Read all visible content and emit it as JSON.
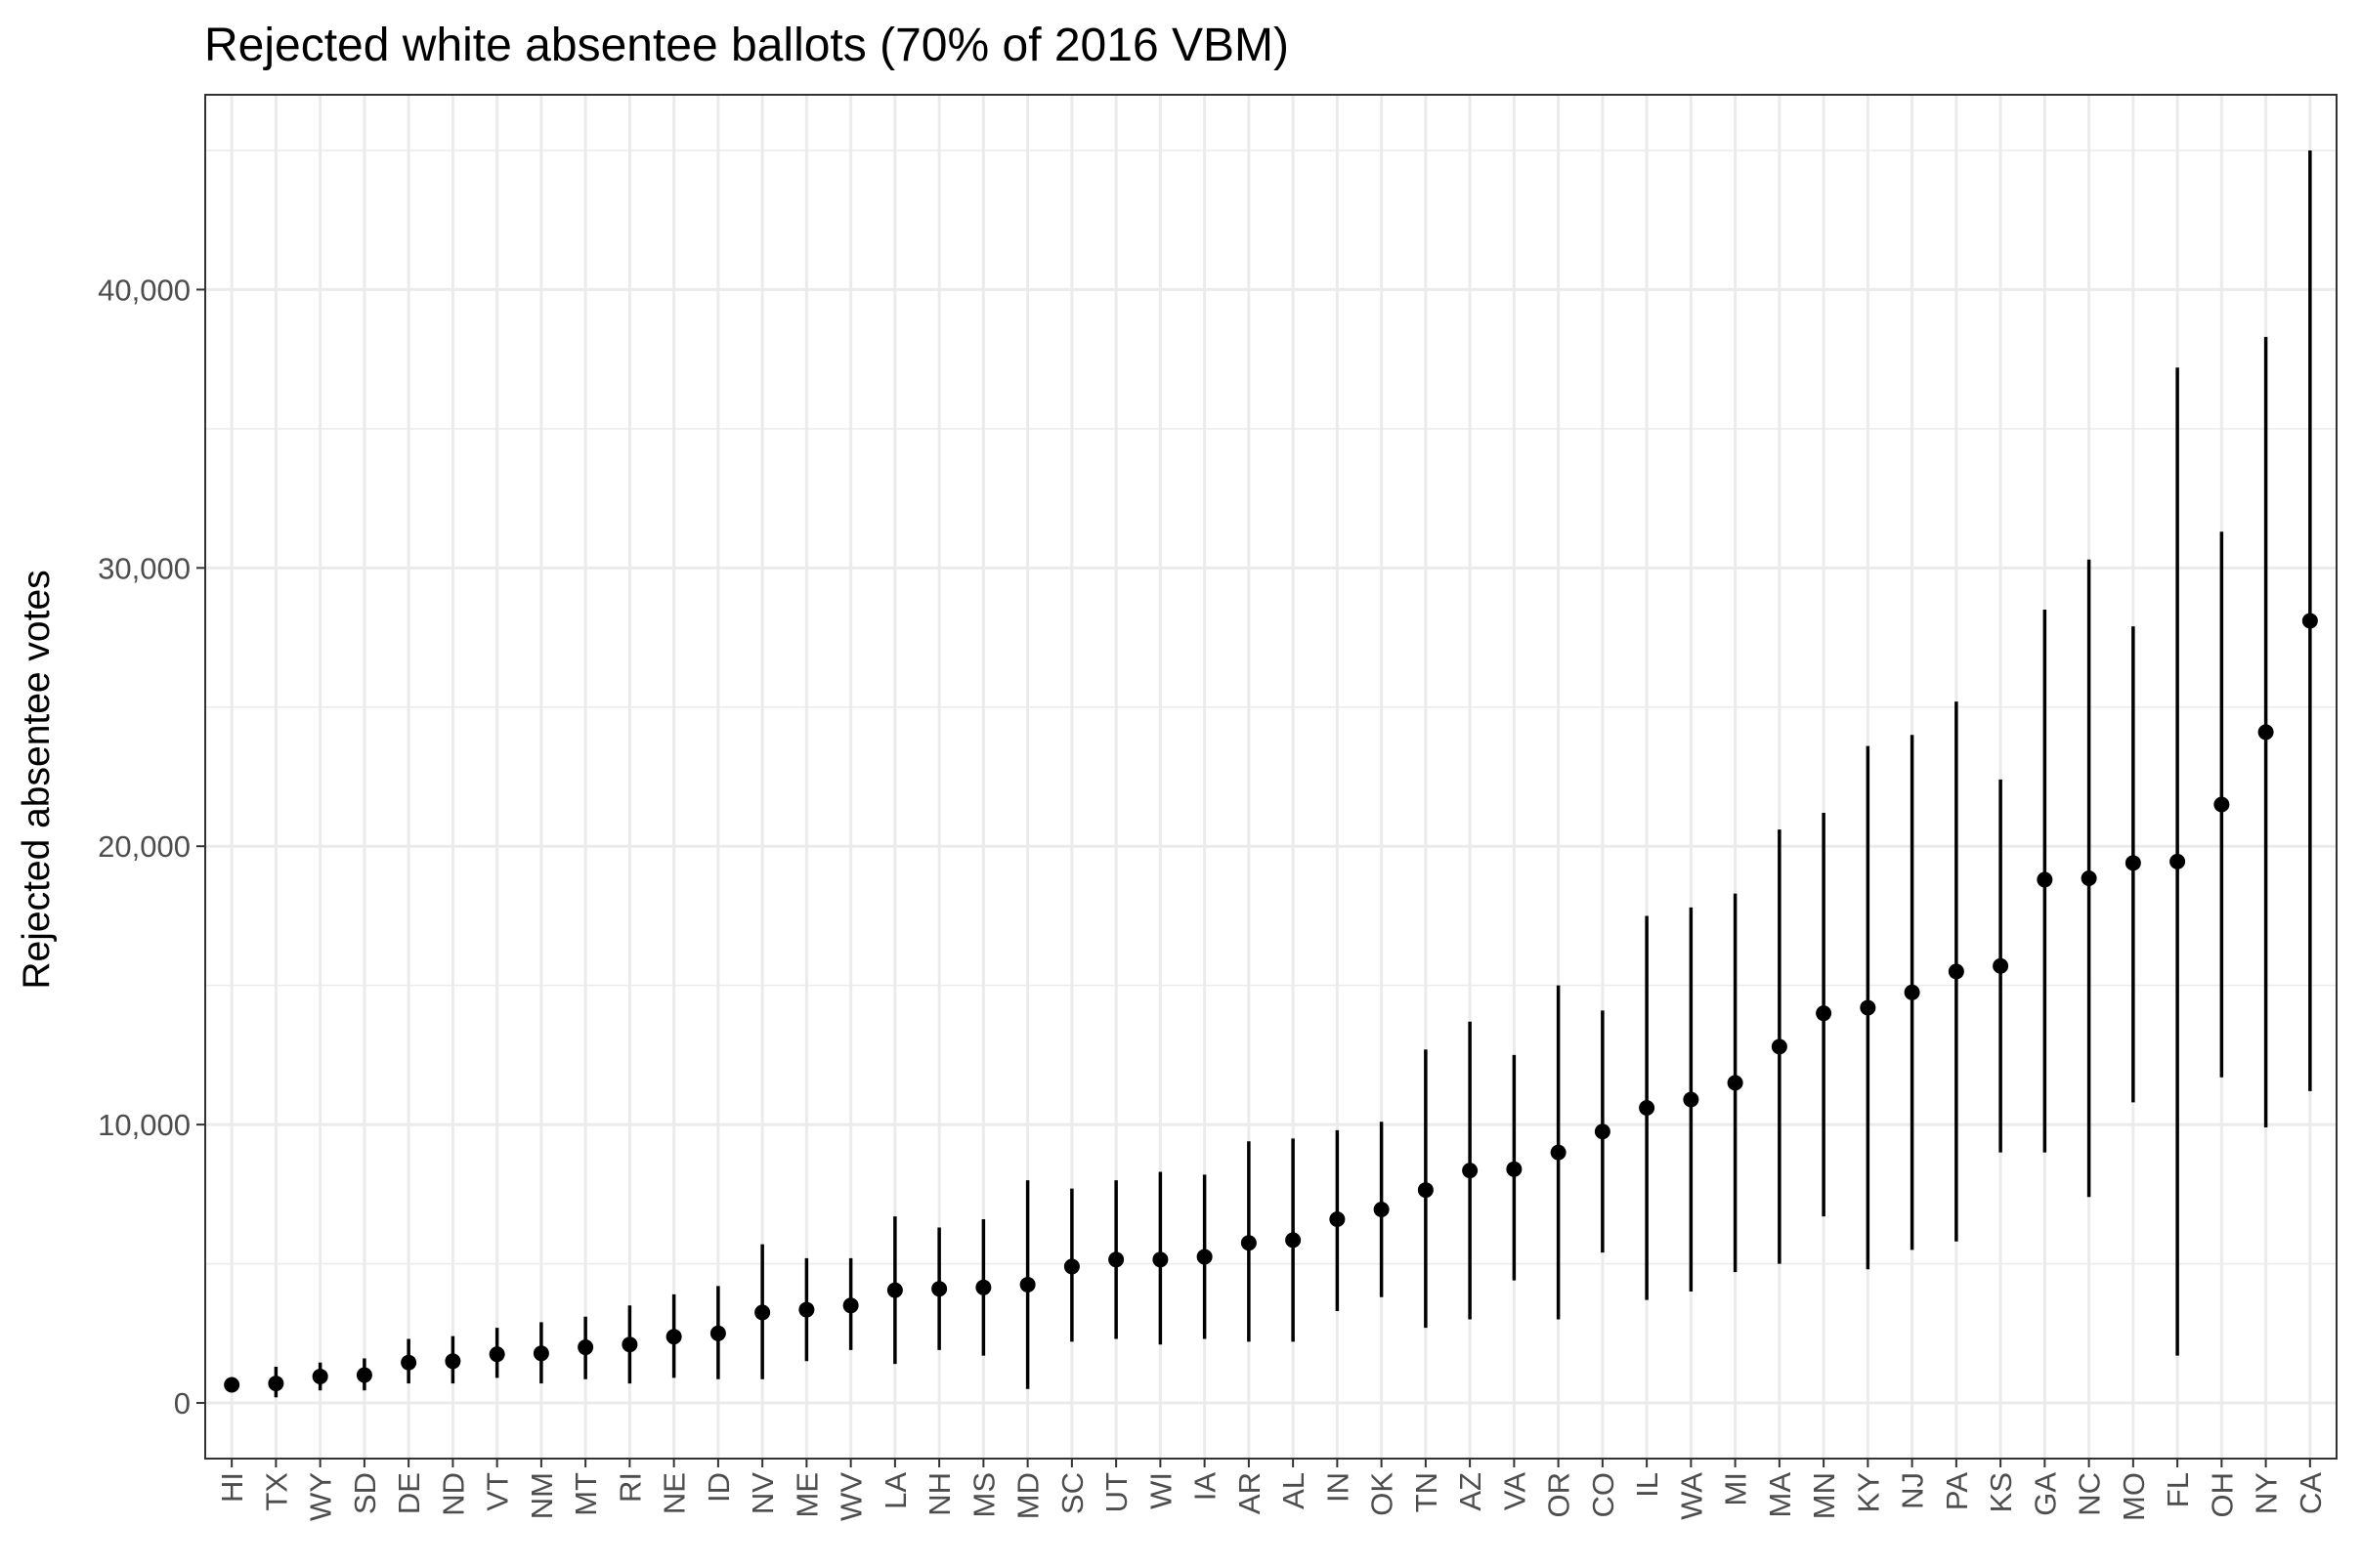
{
  "chart_data": {
    "type": "scatter",
    "title": "Rejected white absentee ballots (70% of 2016 VBM)",
    "xlabel": "",
    "ylabel": "Rejected absentee votes",
    "ylim": [
      -2000,
      47000
    ],
    "yticks": [
      0,
      10000,
      20000,
      30000,
      40000
    ],
    "ytick_labels": [
      "0",
      "10,000",
      "20,000",
      "30,000",
      "40,000"
    ],
    "grid": true,
    "legend": "none",
    "categories": [
      "HI",
      "TX",
      "WY",
      "SD",
      "DE",
      "ND",
      "VT",
      "NM",
      "MT",
      "RI",
      "NE",
      "ID",
      "NV",
      "ME",
      "WV",
      "LA",
      "NH",
      "MS",
      "MD",
      "SC",
      "UT",
      "WI",
      "IA",
      "AR",
      "AL",
      "IN",
      "OK",
      "TN",
      "AZ",
      "VA",
      "OR",
      "CO",
      "IL",
      "WA",
      "MI",
      "MA",
      "MN",
      "KY",
      "NJ",
      "PA",
      "KS",
      "GA",
      "NC",
      "MO",
      "FL",
      "OH",
      "NY",
      "CA"
    ],
    "values": [
      650,
      700,
      950,
      1000,
      1450,
      1500,
      1750,
      1780,
      2000,
      2100,
      2380,
      2500,
      3250,
      3350,
      3500,
      4050,
      4100,
      4150,
      4250,
      4900,
      5150,
      5150,
      5250,
      5750,
      5850,
      6600,
      6950,
      7650,
      8350,
      8400,
      9000,
      9750,
      10600,
      10900,
      11500,
      12800,
      14000,
      14200,
      14750,
      15500,
      15700,
      18800,
      18850,
      19400,
      19450,
      21500,
      24100,
      28100
    ],
    "lower": [
      400,
      200,
      450,
      450,
      700,
      700,
      900,
      700,
      850,
      700,
      900,
      850,
      850,
      1500,
      1900,
      1400,
      1900,
      1700,
      500,
      2200,
      2300,
      2100,
      2300,
      2200,
      2200,
      3300,
      3800,
      2700,
      3000,
      4400,
      3000,
      5400,
      3700,
      4000,
      4700,
      5000,
      6700,
      4800,
      5500,
      5800,
      9000,
      9000,
      7400,
      10800,
      1700,
      11700,
      9900,
      11200
    ],
    "upper": [
      900,
      1300,
      1450,
      1600,
      2300,
      2400,
      2700,
      2900,
      3100,
      3500,
      3900,
      4200,
      5700,
      5200,
      5200,
      6700,
      6300,
      6600,
      8000,
      7700,
      8000,
      8300,
      8200,
      9400,
      9500,
      9800,
      10100,
      12700,
      13700,
      12500,
      15000,
      14100,
      17500,
      17800,
      18300,
      20600,
      21200,
      23600,
      24000,
      25200,
      22400,
      28500,
      30300,
      27900,
      37200,
      31300,
      38300,
      45000
    ],
    "series_color": "#000000",
    "grid_color": "#ebebeb",
    "panel_border_color": "#333333"
  }
}
